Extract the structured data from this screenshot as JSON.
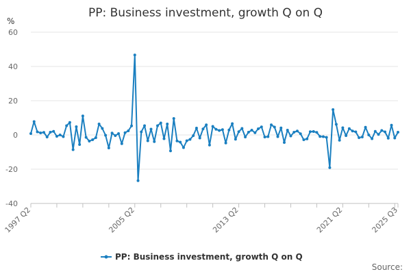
{
  "chart_data": {
    "type": "line",
    "title": "PP: Business investment, growth Q on Q",
    "y_unit": "%",
    "ylim": [
      -40,
      60
    ],
    "yticks": [
      -40,
      -20,
      0,
      20,
      40,
      60
    ],
    "x_start": "1997 Q2",
    "x_end": "2025 Q3",
    "xtick_labels": [
      "1997 Q2",
      "2005 Q2",
      "2013 Q2",
      "2021 Q2",
      "2025 Q3"
    ],
    "grid": true,
    "legend_position": "bottom",
    "series": [
      {
        "name": "PP: Business investment, growth Q on Q",
        "color": "#1a7fc0",
        "values": [
          0.8,
          7.8,
          1.8,
          1.2,
          1.5,
          -1.2,
          1.6,
          2.1,
          -0.8,
          0.0,
          -1.0,
          5.4,
          7.3,
          -8.6,
          4.8,
          -5.6,
          11.1,
          -1.4,
          -3.6,
          -2.8,
          -1.6,
          6.4,
          3.8,
          -0.2,
          -7.6,
          1.1,
          -0.4,
          0.8,
          -5.1,
          1.3,
          2.4,
          5.3,
          46.7,
          -26.7,
          1.8,
          5.4,
          -3.4,
          3.4,
          -3.9,
          5.4,
          7.0,
          -2.2,
          6.4,
          -9.3,
          9.6,
          -3.5,
          -4.2,
          -7.4,
          -3.4,
          -2.6,
          -0.4,
          4.0,
          -1.8,
          3.5,
          5.9,
          -5.9,
          5.0,
          3.3,
          2.6,
          3.1,
          -4.7,
          2.9,
          6.6,
          -2.5,
          1.9,
          3.8,
          -1.2,
          1.6,
          2.8,
          1.3,
          3.6,
          4.7,
          -1.2,
          -1.0,
          5.9,
          4.6,
          -1.0,
          4.1,
          -4.4,
          2.8,
          -0.6,
          1.6,
          2.3,
          0.7,
          -2.8,
          -2.3,
          1.9,
          2.0,
          1.5,
          -0.9,
          -1.0,
          -1.4,
          -19.1,
          14.8,
          6.2,
          -3.1,
          4.2,
          -0.4,
          3.7,
          2.3,
          1.8,
          -1.6,
          -1.2,
          4.5,
          0.0,
          -2.2,
          2.1,
          0.3,
          2.6,
          1.8,
          -1.9,
          5.7,
          -1.8,
          1.6
        ]
      }
    ]
  },
  "source_label": "Source:"
}
